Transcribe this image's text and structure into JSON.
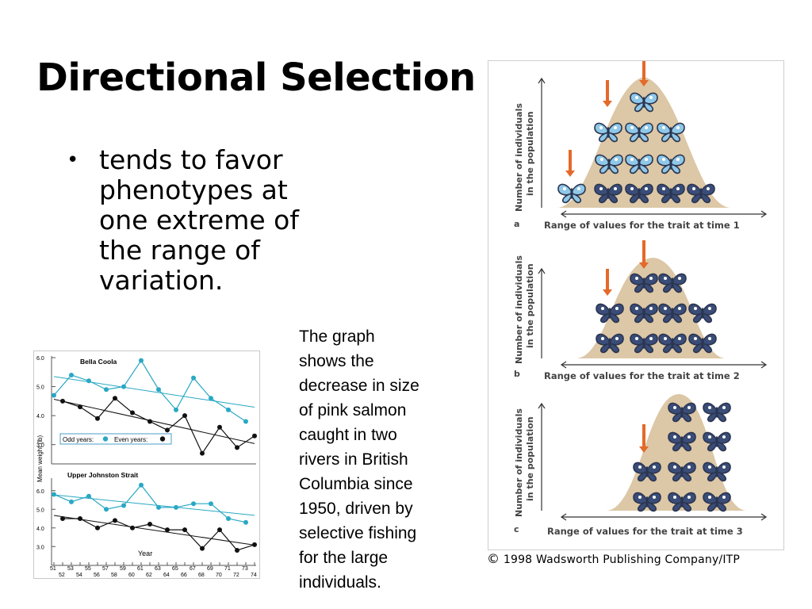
{
  "slide": {
    "title": "Directional Selection",
    "bullet": "tends to favor\nphenotypes at\none extreme of\nthe range of\nvariation.",
    "caption": "The graph\nshows the\ndecrease in size\nof pink salmon\ncaught in two\nrivers in British\nColumbia since\n1950, driven by\nselective fishing\nfor the large\nindividuals."
  },
  "butterfly_figure": {
    "ylabel_line1": "Number of individuals",
    "ylabel_line2": "in the population",
    "panels": [
      {
        "letter": "a",
        "xlabel": "Range of values for the trait at time 1"
      },
      {
        "letter": "b",
        "xlabel": "Range of values for the trait at time 2"
      },
      {
        "letter": "c",
        "xlabel": "Range of values for the trait at time 3"
      }
    ],
    "copyright_symbol": "©",
    "copyright_text": "1998 Wadsworth Publishing Company/ITP",
    "colors": {
      "hill": "#dcc7a6",
      "arrow": "#e36a2a",
      "butterfly_dark": "#2b3550",
      "butterfly_light": "#8fc8e8"
    }
  },
  "chart_data": [
    {
      "type": "line",
      "title": "Bella Coola",
      "ylabel": "Mean weight (lb)",
      "yticks": [
        "6.0",
        "5.0",
        "4.0",
        "3.0"
      ],
      "ylim": [
        2.5,
        6.0
      ],
      "x": [
        51,
        52,
        53,
        54,
        55,
        56,
        57,
        58,
        59,
        60,
        61,
        62,
        63,
        64,
        65,
        66,
        67,
        68,
        69,
        70,
        71,
        72,
        73,
        74
      ],
      "series": [
        {
          "name": "Odd years:",
          "color": "#29a8c4",
          "x": [
            51,
            53,
            55,
            57,
            59,
            61,
            63,
            65,
            67,
            69,
            71,
            73
          ],
          "values": [
            4.7,
            5.4,
            5.2,
            4.9,
            5.0,
            5.9,
            4.9,
            4.2,
            5.3,
            4.6,
            4.2,
            3.8
          ]
        },
        {
          "name": "Even years:",
          "color": "#111111",
          "x": [
            52,
            54,
            56,
            58,
            60,
            62,
            64,
            66,
            68,
            70,
            72,
            74
          ],
          "values": [
            4.5,
            4.3,
            3.9,
            4.6,
            4.1,
            3.8,
            3.5,
            4.0,
            2.7,
            3.6,
            2.9,
            3.3
          ]
        }
      ],
      "legend": "middle"
    },
    {
      "type": "line",
      "title": "Upper Johnston Strait",
      "xlabel": "Year",
      "yticks": [
        "6.0",
        "5.0",
        "4.0",
        "3.0"
      ],
      "ylim": [
        2.5,
        6.5
      ],
      "x": [
        51,
        52,
        53,
        54,
        55,
        56,
        57,
        58,
        59,
        60,
        61,
        62,
        63,
        64,
        65,
        66,
        67,
        68,
        69,
        70,
        71,
        72,
        73,
        74
      ],
      "xticks_top": [
        "51",
        "53",
        "55",
        "57",
        "59",
        "61",
        "63",
        "65",
        "67",
        "69",
        "71",
        "73"
      ],
      "xticks_bottom": [
        "52",
        "54",
        "56",
        "58",
        "60",
        "62",
        "64",
        "66",
        "68",
        "70",
        "72",
        "74"
      ],
      "series": [
        {
          "name": "Odd years:",
          "color": "#29a8c4",
          "x": [
            51,
            53,
            55,
            57,
            59,
            61,
            63,
            65,
            67,
            69,
            71,
            73
          ],
          "values": [
            5.8,
            5.4,
            5.7,
            5.0,
            5.2,
            6.3,
            5.1,
            5.1,
            5.3,
            5.3,
            4.5,
            4.3
          ]
        },
        {
          "name": "Even years:",
          "color": "#111111",
          "x": [
            52,
            54,
            56,
            58,
            60,
            62,
            64,
            66,
            68,
            70,
            72,
            74
          ],
          "values": [
            4.5,
            4.5,
            4.0,
            4.4,
            4.0,
            4.2,
            3.9,
            3.9,
            2.9,
            3.9,
            2.8,
            3.1
          ]
        }
      ]
    }
  ]
}
